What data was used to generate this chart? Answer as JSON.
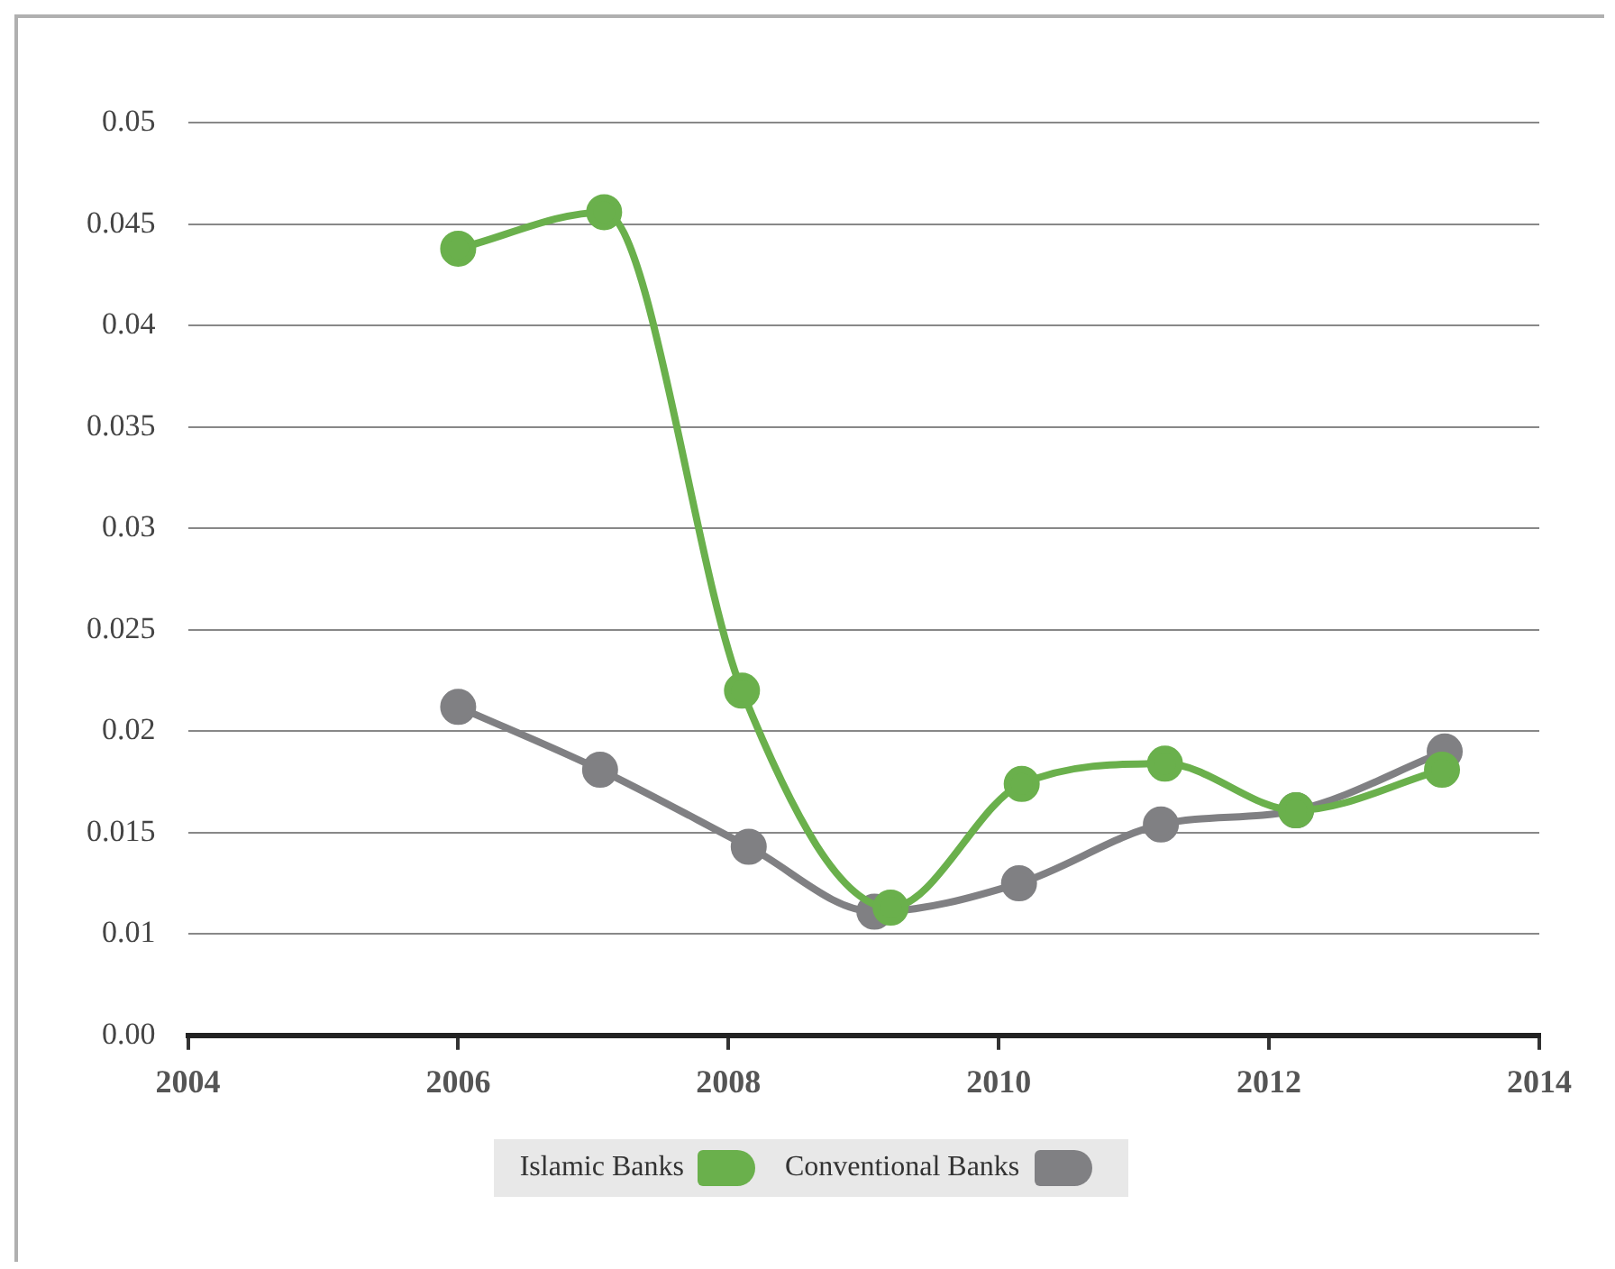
{
  "chart_data": {
    "type": "line",
    "xlim": [
      2004,
      2014
    ],
    "xticks": [
      2004,
      2006,
      2008,
      2010,
      2012,
      2014
    ],
    "ylim": [
      0.005,
      0.05
    ],
    "yticks": [
      {
        "value": 0.005,
        "label": "0.00"
      },
      0.01,
      0.015,
      0.02,
      0.025,
      0.03,
      0.035,
      0.04,
      0.045,
      0.05
    ],
    "grid": "y",
    "legend": "bottom",
    "marker": "circle",
    "series": [
      {
        "name": "Islamic Banks",
        "color": "#6ab04c",
        "x": [
          2006,
          2007.08,
          2008.1,
          2009.2,
          2010.17,
          2011.23,
          2012.2,
          2013.28
        ],
        "values": [
          0.0438,
          0.0456,
          0.022,
          0.0113,
          0.0174,
          0.0184,
          0.0161,
          0.0181
        ]
      },
      {
        "name": "Conventional Banks",
        "color": "#808083",
        "x": [
          2006,
          2007.05,
          2008.15,
          2009.08,
          2010.15,
          2011.2,
          2012.2,
          2013.3
        ],
        "values": [
          0.0212,
          0.0181,
          0.0143,
          0.0111,
          0.0125,
          0.0154,
          0.0161,
          0.019
        ]
      }
    ]
  }
}
